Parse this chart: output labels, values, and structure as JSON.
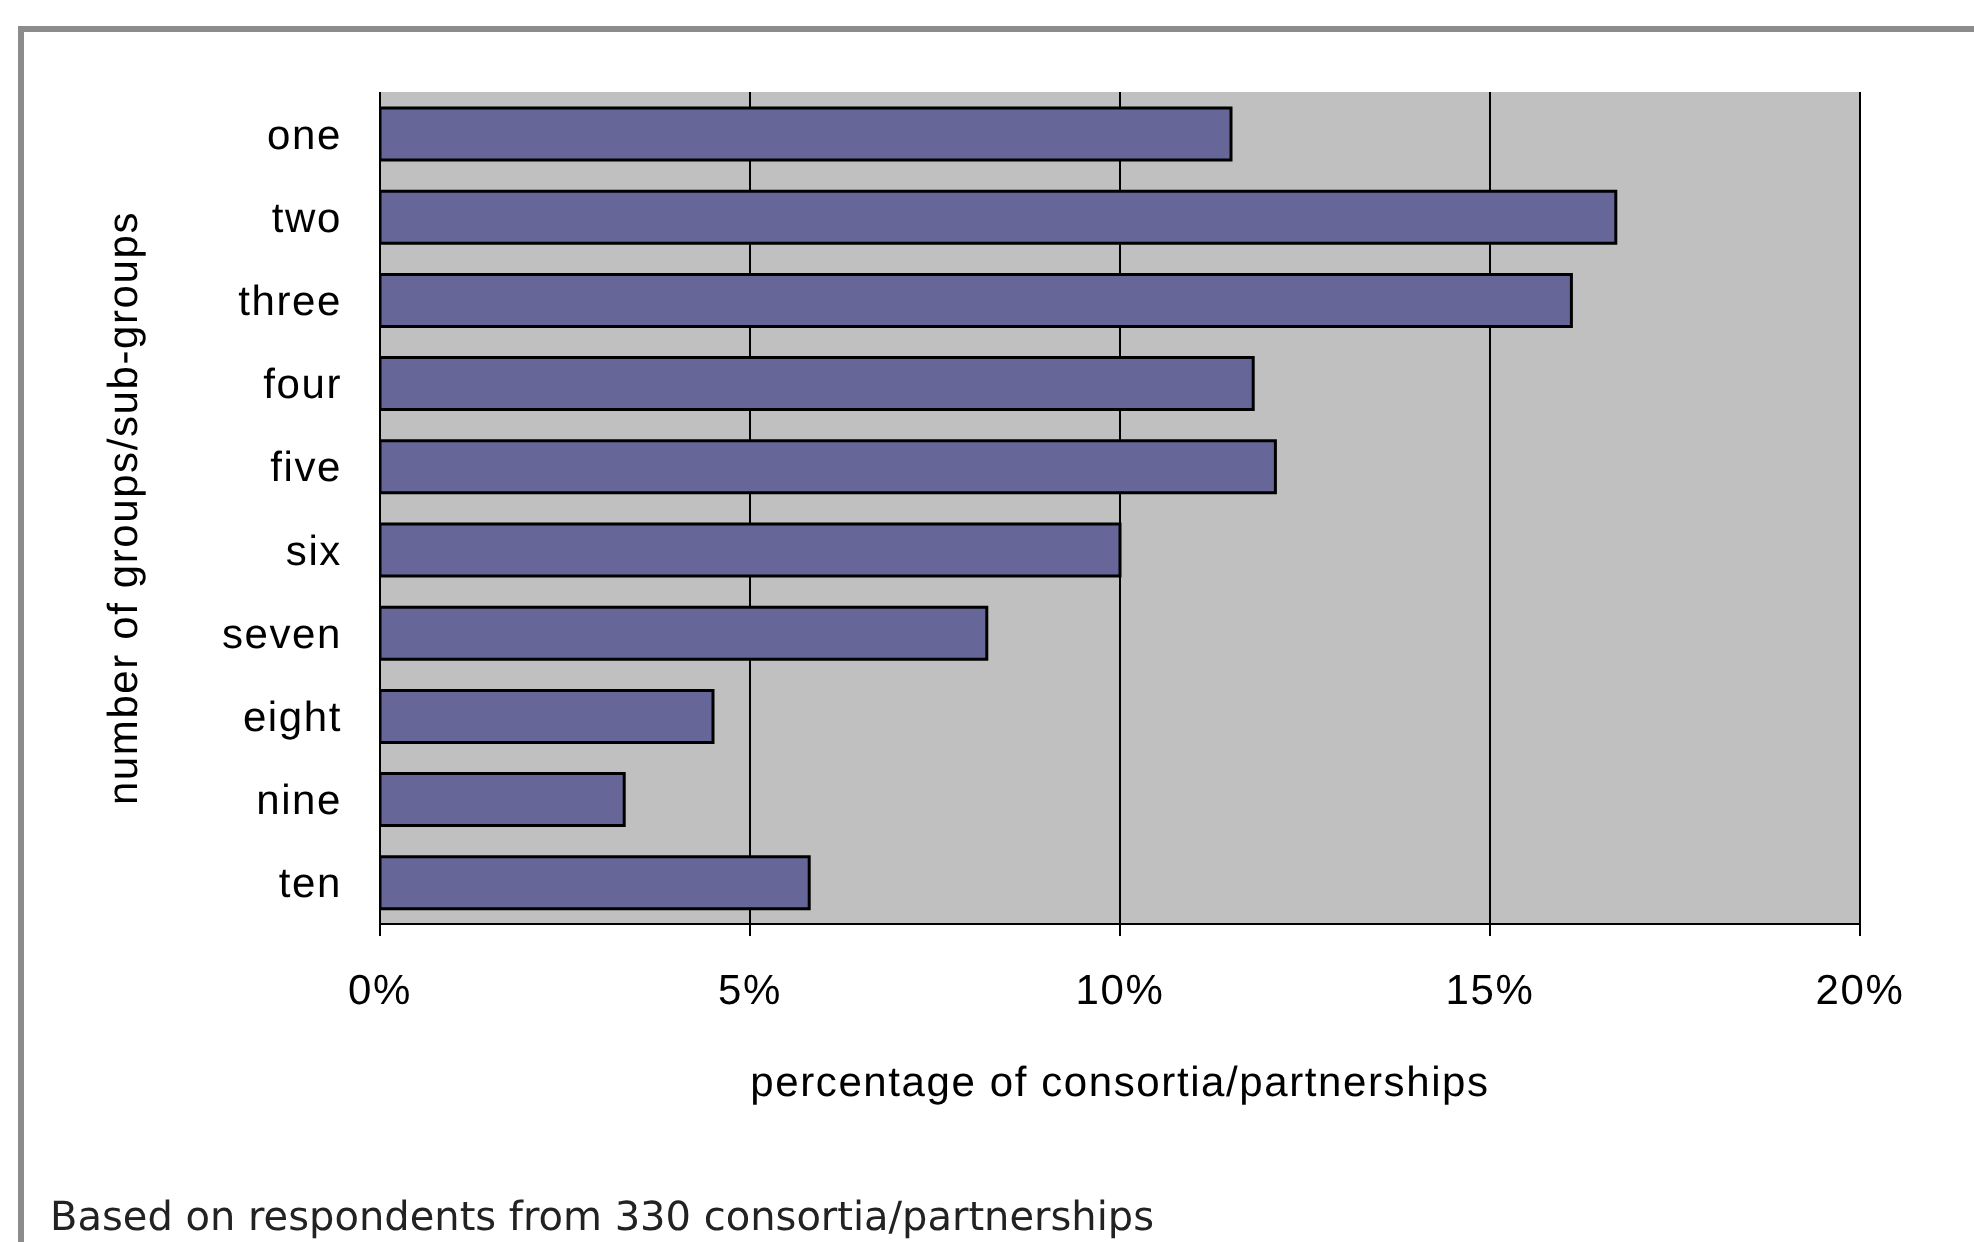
{
  "chart_data": {
    "type": "bar",
    "orientation": "horizontal",
    "categories": [
      "one",
      "two",
      "three",
      "four",
      "five",
      "six",
      "seven",
      "eight",
      "nine",
      "ten"
    ],
    "values": [
      11.5,
      16.7,
      16.1,
      11.8,
      12.1,
      10.0,
      8.2,
      4.5,
      3.3,
      5.8
    ],
    "color": "#666699",
    "xlabel": "percentage of consortia/partnerships",
    "ylabel": "number of groups/sub-groups",
    "xlim": [
      0,
      20
    ],
    "xticks": [
      {
        "value": 0,
        "label": "0%"
      },
      {
        "value": 5,
        "label": "5%"
      },
      {
        "value": 10,
        "label": "10%"
      },
      {
        "value": 15,
        "label": "15%"
      },
      {
        "value": 20,
        "label": "20%"
      }
    ],
    "grid": "x",
    "annotations": [
      "Based on respondents from 330 consortia/partnerships"
    ]
  }
}
